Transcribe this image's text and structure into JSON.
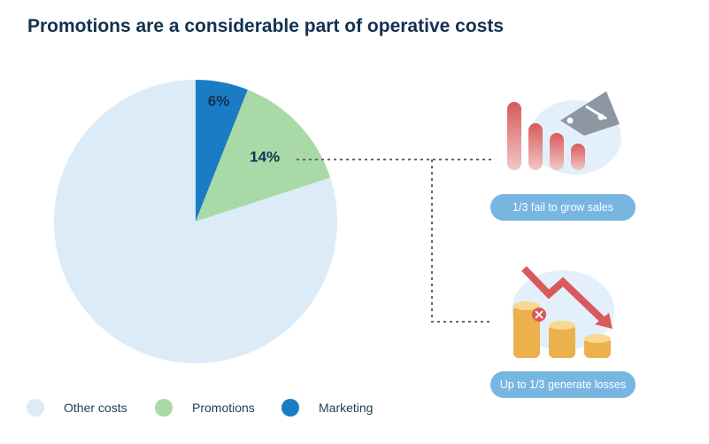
{
  "chart_data": {
    "type": "pie",
    "title": "Promotions are a considerable part of operative costs",
    "slices": [
      {
        "label": "Marketing",
        "value": 6,
        "data_label": "6%",
        "color": "#1a7cc4",
        "label_color": "#ffffff"
      },
      {
        "label": "Promotions",
        "value": 14,
        "data_label": "14%",
        "color": "#a8d9a6",
        "label_color": "#12324f"
      },
      {
        "label": "Other costs",
        "value": 80,
        "data_label": "",
        "color": "#dcebf8",
        "label_color": "#12324f"
      }
    ],
    "legend_order": [
      "Other costs",
      "Promotions",
      "Marketing"
    ],
    "legend_placement": "bottom-left"
  },
  "callouts": [
    {
      "text": "1/3 fail to grow sales",
      "icon": "declining-bars-with-price-tag-icon"
    },
    {
      "text": "Up to 1/3 generate losses",
      "icon": "coins-with-down-arrow-icon"
    }
  ]
}
